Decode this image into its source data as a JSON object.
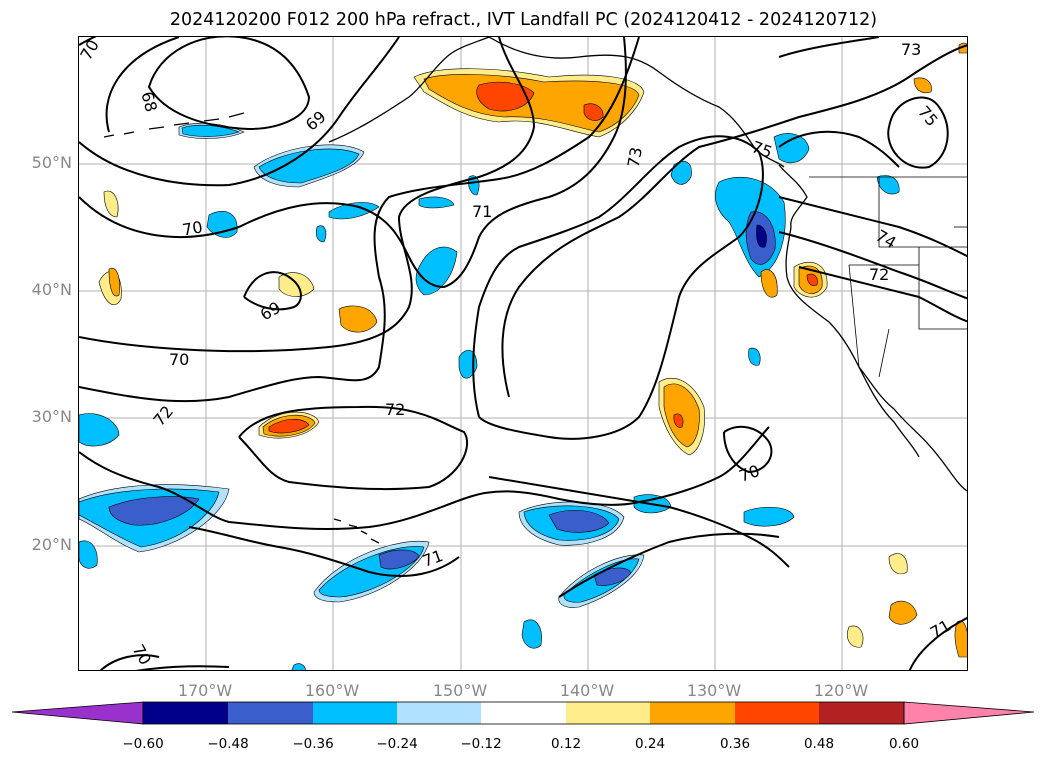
{
  "title": "2024120200 F012 200 hPa refract., IVT Landfall PC (2024120412 - 2024120712)",
  "lat_labels": [
    "50°N",
    "40°N",
    "30°N",
    "20°N"
  ],
  "lon_labels": [
    "170°W",
    "160°W",
    "150°W",
    "140°W",
    "130°W",
    "120°W"
  ],
  "colorbar": {
    "ticks": [
      "−0.60",
      "−0.48",
      "−0.36",
      "−0.24",
      "−0.12",
      "0.12",
      "0.24",
      "0.36",
      "0.48",
      "0.60"
    ],
    "colors": [
      "#9932cc",
      "#00008b",
      "#3a5fcd",
      "#00bfff",
      "#b0e2ff",
      "#ffffff",
      "#ffec8b",
      "#ffa500",
      "#ff4500",
      "#b22222",
      "#ff82ab"
    ]
  },
  "contour_labels": [
    "70",
    "68",
    "69",
    "73",
    "75",
    "73",
    "75",
    "71",
    "70",
    "69",
    "74",
    "72",
    "70",
    "72",
    "72",
    "70",
    "71",
    "70",
    "71"
  ],
  "colors": {
    "contour": "#000000",
    "coast": "#000000",
    "grid": "#b0b0b0",
    "tick_label": "#888888"
  }
}
